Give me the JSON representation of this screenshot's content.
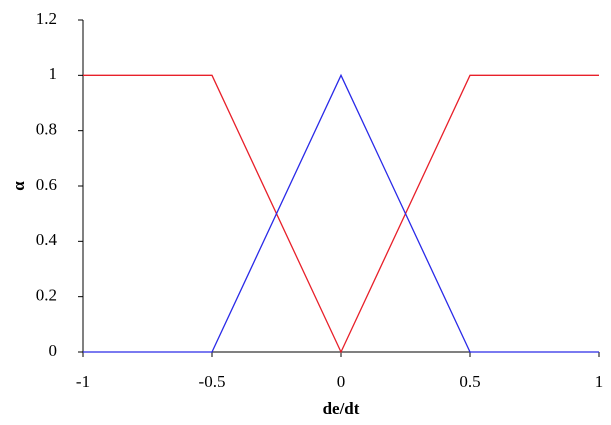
{
  "chart_data": {
    "type": "line",
    "x_label": "de/dt",
    "y_label": "α",
    "x": [
      -1,
      -0.5,
      0,
      0.5,
      1
    ],
    "series": [
      {
        "color": "#e8202a",
        "values": [
          1,
          1,
          0,
          1,
          1
        ]
      },
      {
        "color": "#2a2ae8",
        "values": [
          0,
          0,
          1,
          0,
          0
        ]
      }
    ],
    "xlim": [
      -1,
      1
    ],
    "xticks": [
      -1,
      -0.5,
      0,
      0.5,
      1
    ],
    "ylim": [
      0,
      1.2
    ],
    "yticks": [
      0,
      0.2,
      0.4,
      0.6,
      0.8,
      1,
      1.2
    ],
    "grid": false
  }
}
